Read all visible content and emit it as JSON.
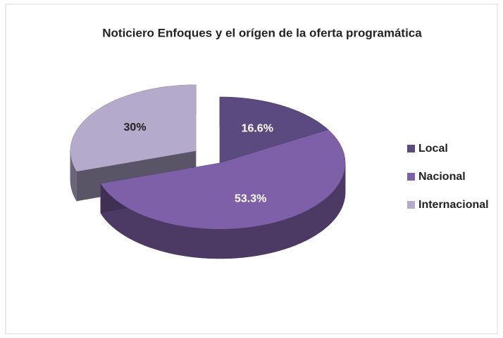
{
  "chart_data": {
    "type": "pie",
    "title": "Noticiero Enfoques y el orígen de la oferta programática",
    "categories": [
      "Local",
      "Nacional",
      "Internacional"
    ],
    "values": [
      16.6,
      53.3,
      30
    ],
    "value_labels": [
      "16.6%",
      "53.3%",
      "30%"
    ],
    "colors": [
      "#5b4a80",
      "#7e60a8",
      "#b4aacb"
    ],
    "exploded": [
      false,
      false,
      true
    ],
    "legend": "right"
  }
}
